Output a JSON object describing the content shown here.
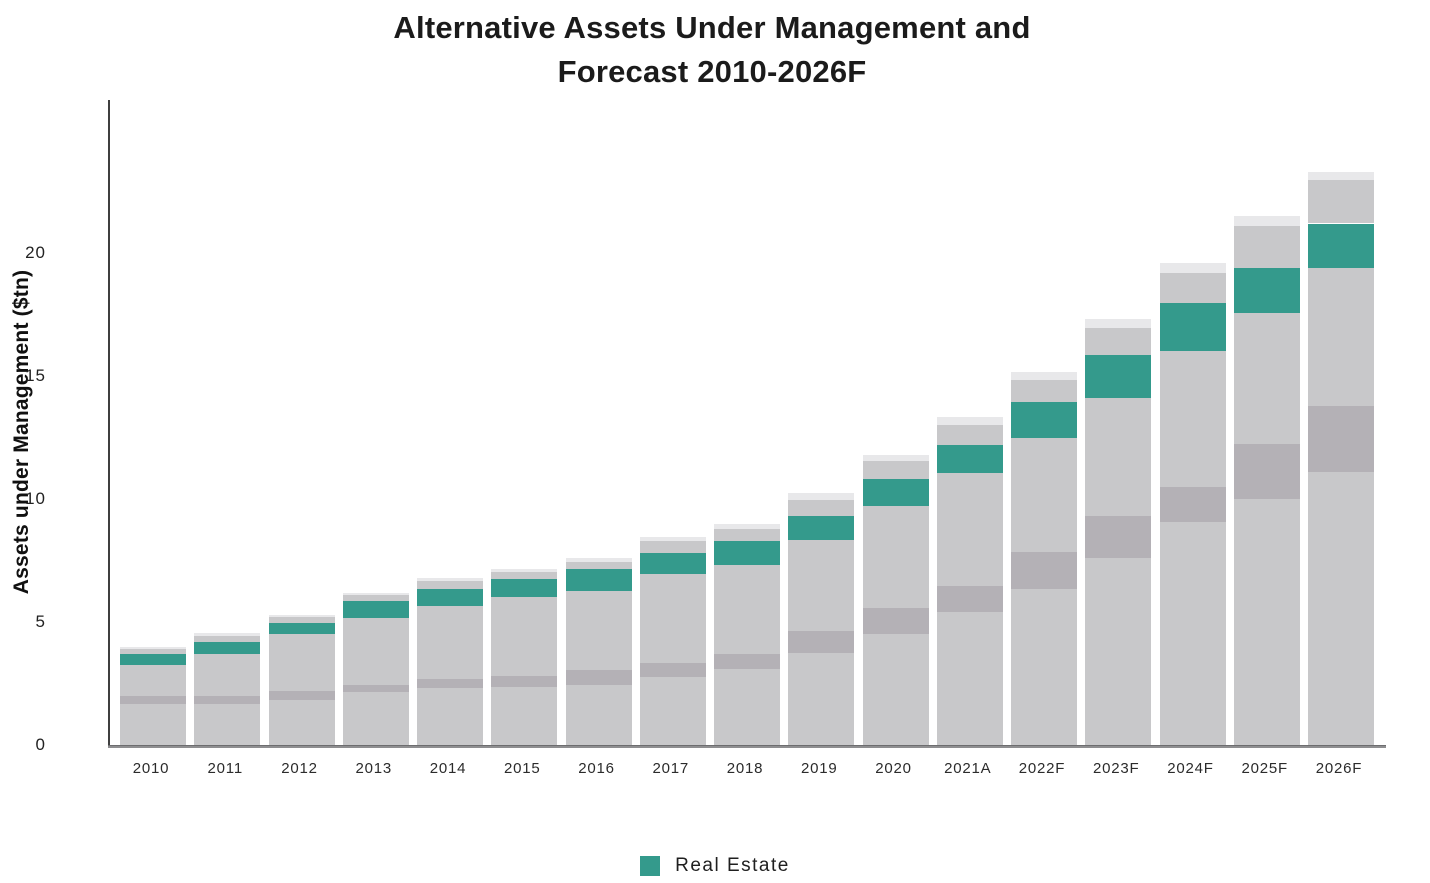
{
  "title": {
    "line1": "Alternative Assets Under Management and",
    "line2": "Forecast 2010-2026F"
  },
  "y_axis": {
    "label": "Assets under Management ($tn)"
  },
  "legend": [
    {
      "label": "Real Estate",
      "color": "#349a8c"
    }
  ],
  "colors": {
    "accent_green": "#349a8c",
    "light_gray_segment": "#c8c8ca",
    "dark_gray_segment": "#b4b1b6",
    "pale_gray_cap": "#e8e8ea",
    "axis_line": "#3f3f3f",
    "baseline": "#8e8e90",
    "title_text": "#1b1b1b"
  },
  "chart_data": {
    "type": "bar",
    "stacked": true,
    "title": "Alternative Assets Under Management and Forecast 2010-2026F",
    "xlabel": "",
    "ylabel": "Assets under Management ($tn)",
    "ylim": [
      0,
      26.2
    ],
    "y_ticks": [
      0,
      5,
      10,
      15,
      20
    ],
    "grid": false,
    "legend_position": "bottom",
    "legend_visible_entries": [
      "Real Estate"
    ],
    "categories": [
      "2010",
      "2011",
      "2012",
      "2013",
      "2014",
      "2015",
      "2016",
      "2017",
      "2018",
      "2019",
      "2020",
      "2021A",
      "2022F",
      "2023F",
      "2024F",
      "2025F",
      "2026F"
    ],
    "series": [
      {
        "name": "segment-1-gray-bottom",
        "color": "#c8c8ca",
        "values": [
          1.65,
          1.65,
          1.85,
          2.15,
          2.3,
          2.35,
          2.45,
          2.75,
          3.1,
          3.75,
          4.5,
          5.4,
          6.35,
          7.6,
          9.05,
          10.0,
          11.1
        ]
      },
      {
        "name": "segment-2-dark-gray-band",
        "color": "#b4b1b6",
        "values": [
          0.35,
          0.35,
          0.35,
          0.3,
          0.4,
          0.45,
          0.6,
          0.6,
          0.6,
          0.9,
          1.05,
          1.05,
          1.5,
          1.7,
          1.45,
          2.25,
          2.7
        ]
      },
      {
        "name": "segment-3-gray-middle",
        "color": "#c8c8ca",
        "values": [
          1.25,
          1.7,
          2.3,
          2.7,
          2.95,
          3.2,
          3.2,
          3.6,
          3.6,
          3.7,
          4.15,
          4.6,
          4.65,
          4.8,
          5.5,
          5.3,
          5.6
        ]
      },
      {
        "name": "Real Estate",
        "color": "#349a8c",
        "values": [
          0.45,
          0.5,
          0.45,
          0.7,
          0.7,
          0.75,
          0.9,
          0.85,
          1.0,
          0.95,
          1.1,
          1.15,
          1.45,
          1.75,
          1.95,
          1.85,
          1.8
        ]
      },
      {
        "name": "segment-5-gray-upper",
        "color": "#c8c8ca",
        "values": [
          0.2,
          0.25,
          0.25,
          0.25,
          0.3,
          0.3,
          0.3,
          0.5,
          0.5,
          0.65,
          0.75,
          0.8,
          0.9,
          1.1,
          1.25,
          1.7,
          1.75
        ]
      },
      {
        "name": "segment-6-pale-gray-cap",
        "color": "#e8e8ea",
        "values": [
          0.1,
          0.1,
          0.1,
          0.1,
          0.15,
          0.1,
          0.15,
          0.15,
          0.2,
          0.3,
          0.25,
          0.35,
          0.3,
          0.35,
          0.4,
          0.4,
          0.35
        ]
      }
    ],
    "totals": [
      4.0,
      4.55,
      5.3,
      6.2,
      6.8,
      7.15,
      7.6,
      8.45,
      9.0,
      10.25,
      11.8,
      13.35,
      15.15,
      17.3,
      19.6,
      21.5,
      23.3
    ]
  }
}
